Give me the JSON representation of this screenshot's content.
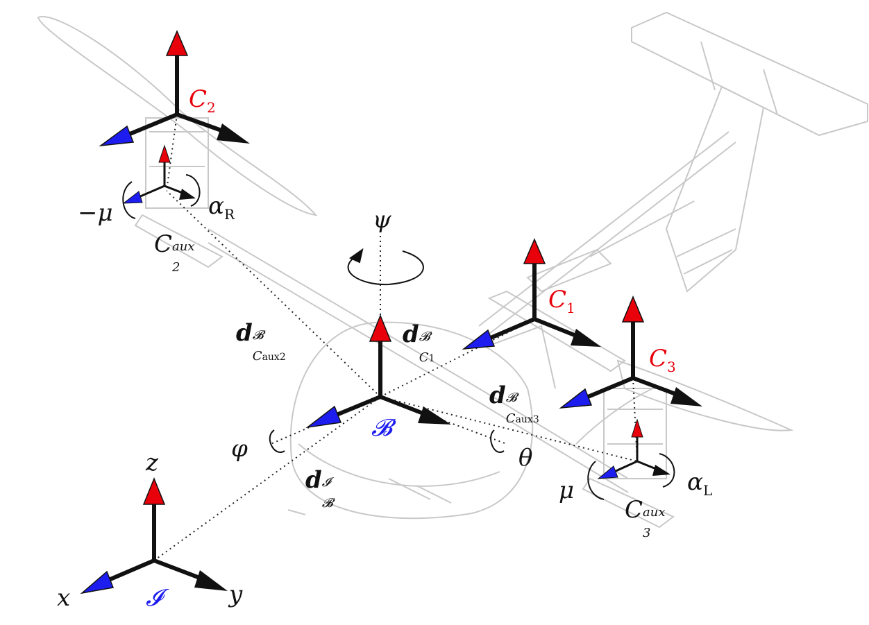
{
  "labels": {
    "C2": "C",
    "C2_sub": "2",
    "C1": "C",
    "C1_sub": "1",
    "C3": "C",
    "C3_sub": "3",
    "neg_mu": "−μ",
    "alpha_R": "α",
    "alpha_R_sub": "R",
    "C2aux": "C",
    "C2aux_sup": "aux",
    "C2aux_sub": "2",
    "psi": "ψ",
    "d_C2aux": "d",
    "d_C2aux_sup": "𝓑",
    "d_C2aux_sub": "C",
    "d_C2aux_subsub": "2",
    "d_C2aux_subsup": "aux",
    "d_C1": "d",
    "d_C1_sup": "𝓑",
    "d_C1_sub": "C",
    "d_C1_subsub": "1",
    "d_C3aux": "d",
    "d_C3aux_sup": "𝓑",
    "d_C3aux_sub": "C",
    "d_C3aux_subsub": "3",
    "d_C3aux_subsup": "aux",
    "B": "𝓑",
    "phi": "φ",
    "theta": "θ",
    "d_B": "d",
    "d_B_sup": "𝓘",
    "d_B_sub": "𝓑",
    "mu": "μ",
    "alpha_L": "α",
    "alpha_L_sub": "L",
    "C3aux": "C",
    "C3aux_sup": "aux",
    "C3aux_sub": "3",
    "z": "z",
    "x": "x",
    "y": "y",
    "I": "𝓘"
  },
  "colors": {
    "up_arrow": "#e8000b",
    "x_arrow": "#1d1df0",
    "y_arrow": "#111111",
    "outline": "#c8c8c8"
  }
}
